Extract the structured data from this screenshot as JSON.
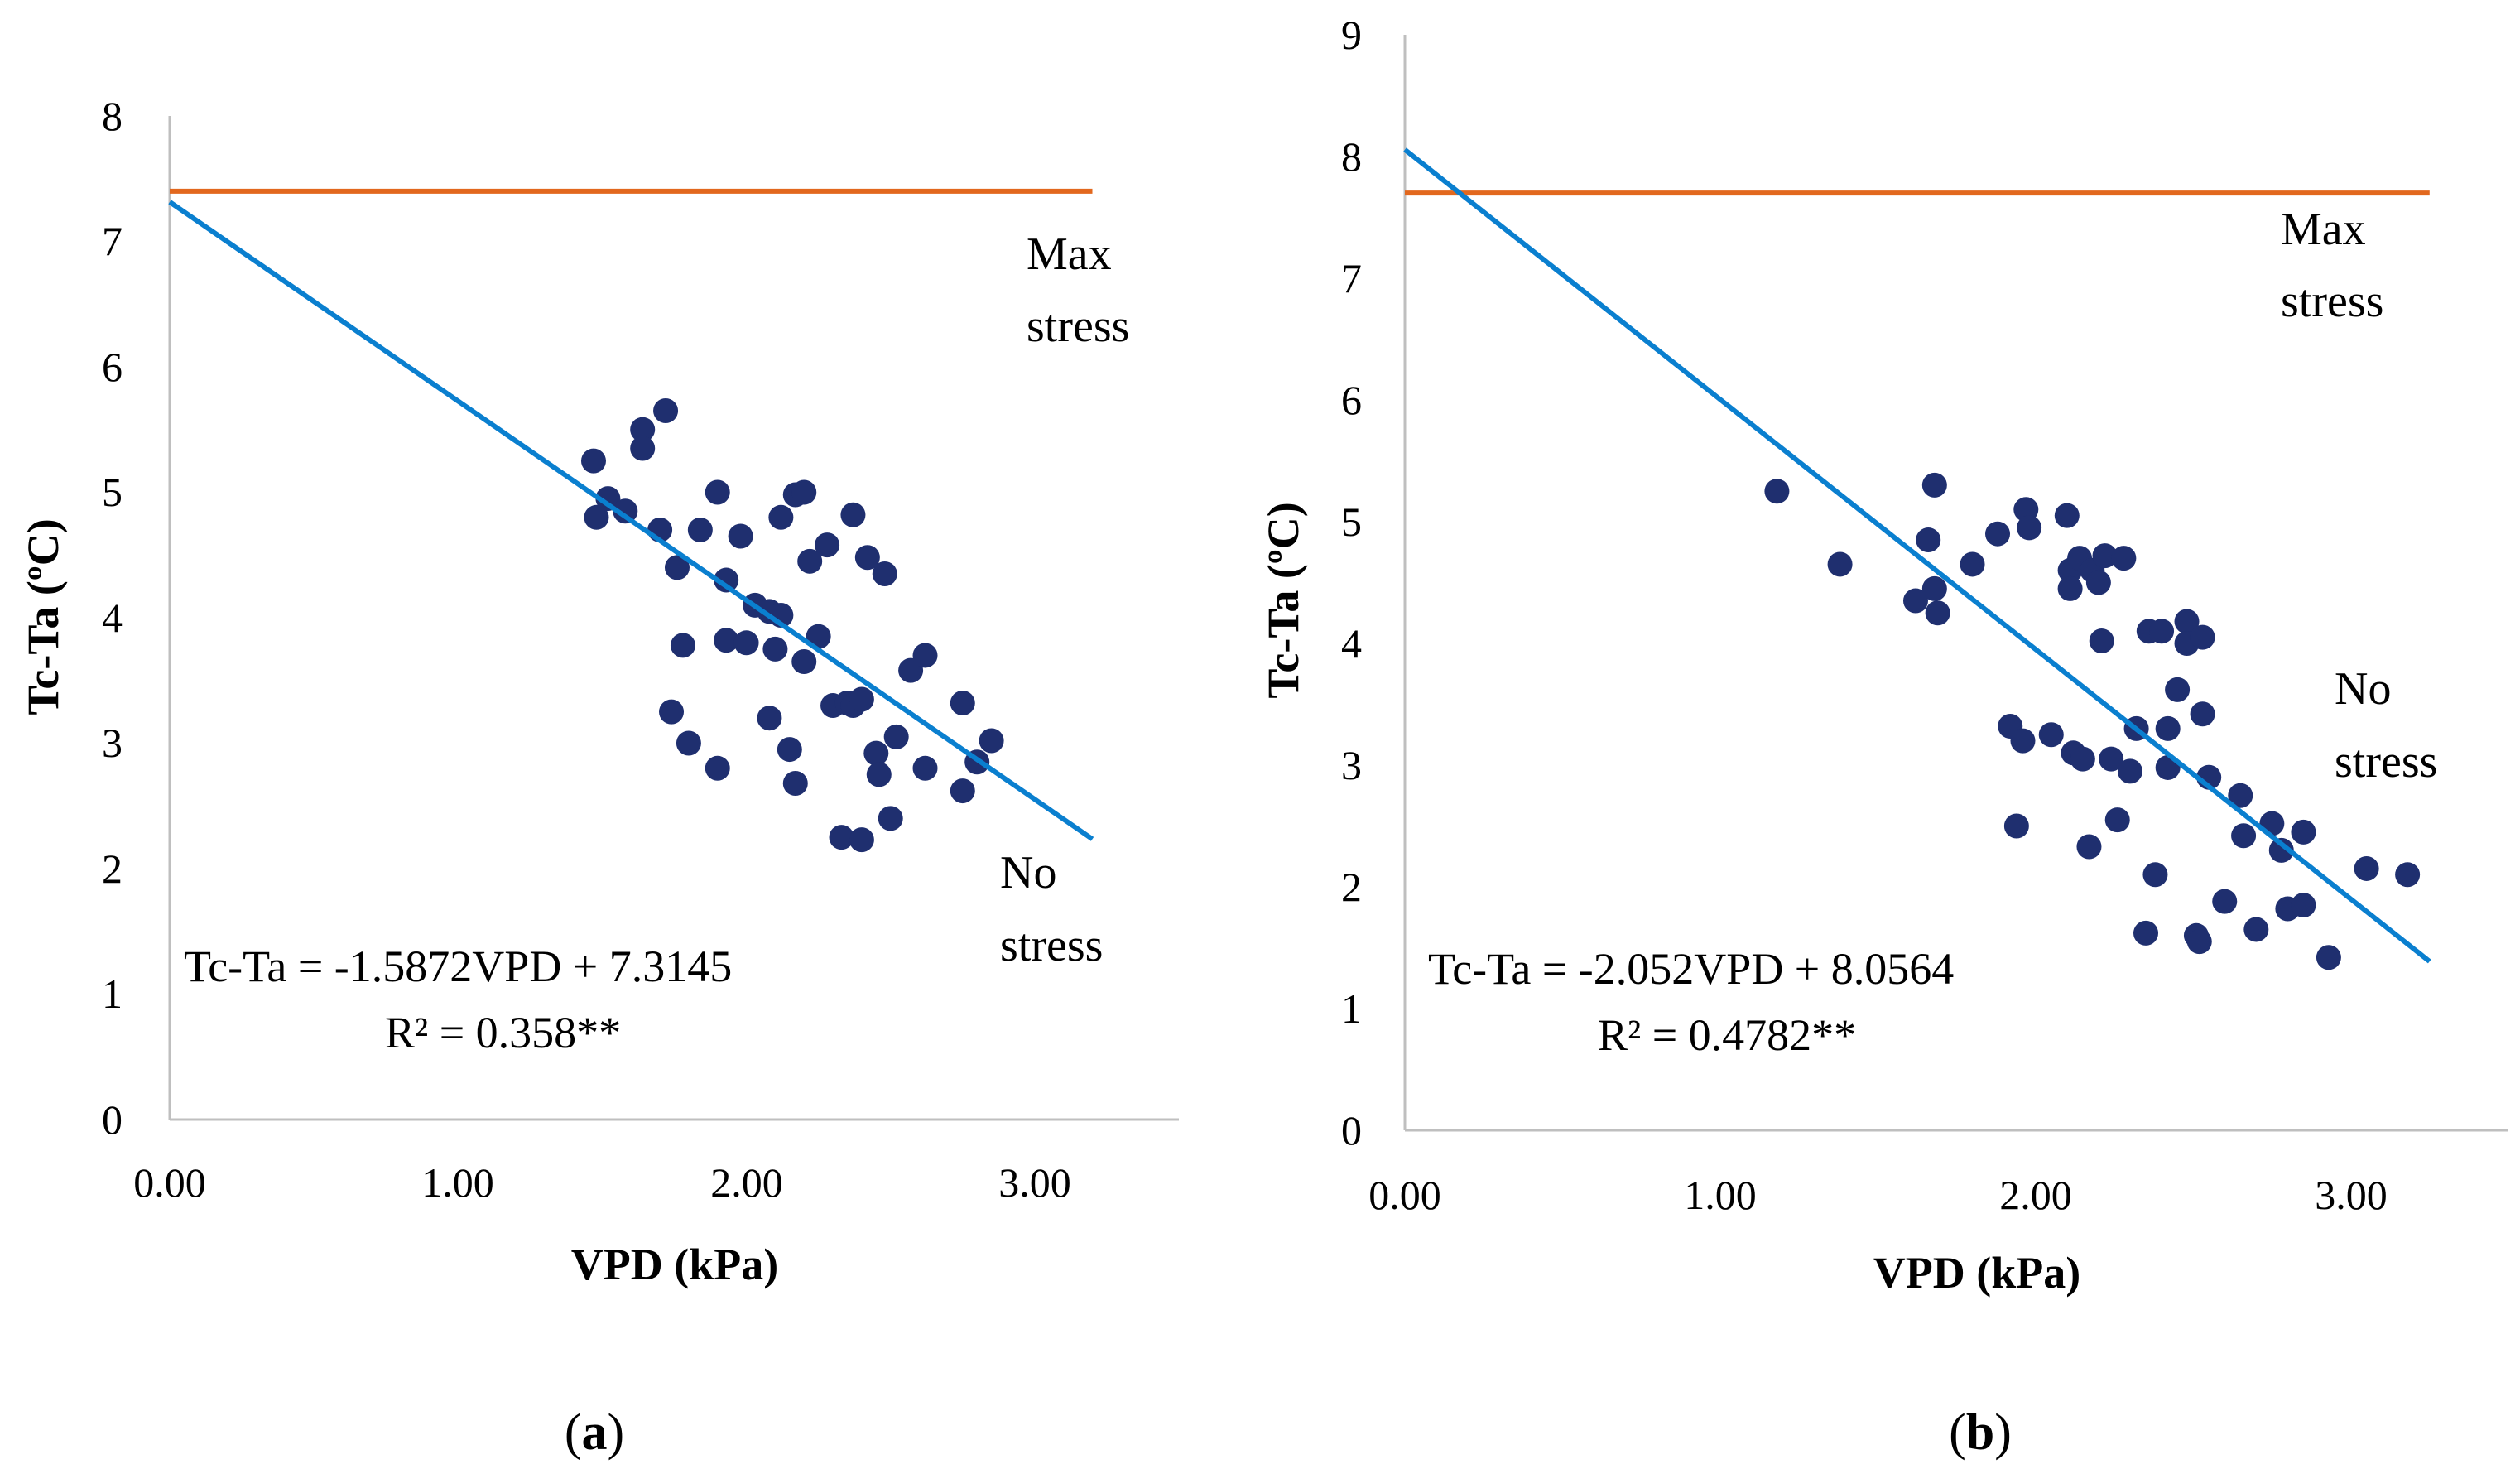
{
  "chart_data": [
    {
      "panel_label": "a",
      "type": "scatter",
      "title": "",
      "xlabel": "VPD (kPa)",
      "ylabel": "Tc-Ta (ºC)",
      "xlim": [
        0,
        3.5
      ],
      "ylim": [
        0,
        8
      ],
      "xticks": [
        "0.00",
        "1.00",
        "2.00",
        "3.00"
      ],
      "yticks": [
        "0",
        "1",
        "2",
        "3",
        "4",
        "5",
        "6",
        "7",
        "8"
      ],
      "colors": {
        "points": "#1f2f6f",
        "regression": "#0a7fcf",
        "max_stress": "#e2681e",
        "axis": "#bfbfbf"
      },
      "max_stress_line": {
        "y": 7.4,
        "x_range": [
          0,
          3.2
        ]
      },
      "regression": {
        "slope": -1.5872,
        "intercept": 7.3145,
        "x_range": [
          0,
          3.2
        ]
      },
      "annotations": {
        "max_stress": [
          "Max",
          "stress"
        ],
        "no_stress": [
          "No",
          "stress"
        ],
        "equation": "Tc-Ta = -1.5872VPD + 7.3145",
        "r2": "R² = 0.358**"
      },
      "points": [
        [
          1.47,
          5.25
        ],
        [
          1.48,
          4.8
        ],
        [
          1.52,
          4.95
        ],
        [
          1.58,
          4.85
        ],
        [
          1.64,
          5.5
        ],
        [
          1.64,
          5.35
        ],
        [
          1.7,
          4.7
        ],
        [
          1.72,
          5.65
        ],
        [
          1.74,
          3.25
        ],
        [
          1.76,
          4.4
        ],
        [
          1.78,
          3.78
        ],
        [
          1.8,
          3.0
        ],
        [
          1.84,
          4.7
        ],
        [
          1.9,
          2.8
        ],
        [
          1.9,
          5.0
        ],
        [
          1.93,
          4.3
        ],
        [
          1.93,
          3.82
        ],
        [
          1.98,
          4.65
        ],
        [
          2.0,
          3.8
        ],
        [
          2.03,
          4.1
        ],
        [
          2.08,
          4.05
        ],
        [
          2.08,
          3.2
        ],
        [
          2.1,
          3.75
        ],
        [
          2.12,
          4.8
        ],
        [
          2.12,
          4.02
        ],
        [
          2.15,
          2.95
        ],
        [
          2.17,
          4.98
        ],
        [
          2.17,
          2.68
        ],
        [
          2.2,
          3.65
        ],
        [
          2.2,
          5.0
        ],
        [
          2.22,
          4.45
        ],
        [
          2.25,
          3.85
        ],
        [
          2.28,
          4.58
        ],
        [
          2.3,
          3.3
        ],
        [
          2.33,
          2.25
        ],
        [
          2.35,
          3.32
        ],
        [
          2.37,
          4.82
        ],
        [
          2.37,
          3.3
        ],
        [
          2.4,
          2.23
        ],
        [
          2.4,
          3.35
        ],
        [
          2.42,
          4.48
        ],
        [
          2.45,
          2.92
        ],
        [
          2.46,
          2.75
        ],
        [
          2.48,
          4.35
        ],
        [
          2.5,
          2.4
        ],
        [
          2.52,
          3.05
        ],
        [
          2.57,
          3.58
        ],
        [
          2.62,
          3.7
        ],
        [
          2.62,
          2.8
        ],
        [
          2.75,
          3.32
        ],
        [
          2.75,
          2.62
        ],
        [
          2.8,
          2.85
        ],
        [
          2.85,
          3.02
        ]
      ]
    },
    {
      "panel_label": "b",
      "type": "scatter",
      "title": "",
      "xlabel": "VPD (kPa)",
      "ylabel": "Tc-Ta (ºC)",
      "xlim": [
        0,
        3.5
      ],
      "ylim": [
        0,
        9
      ],
      "xticks": [
        "0.00",
        "1.00",
        "2.00",
        "3.00"
      ],
      "yticks": [
        "0",
        "1",
        "2",
        "3",
        "4",
        "5",
        "6",
        "7",
        "8",
        "9"
      ],
      "colors": {
        "points": "#1f2f6f",
        "regression": "#0a7fcf",
        "max_stress": "#e2681e",
        "axis": "#bfbfbf"
      },
      "max_stress_line": {
        "y": 7.7,
        "x_range": [
          0,
          3.25
        ]
      },
      "regression": {
        "slope": -2.052,
        "intercept": 8.0564,
        "x_range": [
          0,
          3.25
        ]
      },
      "annotations": {
        "max_stress": [
          "Max",
          "stress"
        ],
        "no_stress": [
          "No",
          "stress"
        ],
        "equation": "Tc-Ta = -2.052VPD + 8.0564",
        "r2": "R² = 0.4782**"
      },
      "points": [
        [
          1.18,
          5.25
        ],
        [
          1.38,
          4.65
        ],
        [
          1.62,
          4.35
        ],
        [
          1.66,
          4.85
        ],
        [
          1.68,
          5.3
        ],
        [
          1.68,
          4.45
        ],
        [
          1.69,
          4.25
        ],
        [
          1.8,
          4.65
        ],
        [
          1.88,
          4.9
        ],
        [
          1.92,
          3.32
        ],
        [
          1.94,
          2.5
        ],
        [
          1.96,
          3.2
        ],
        [
          1.97,
          5.1
        ],
        [
          1.98,
          4.95
        ],
        [
          2.05,
          3.25
        ],
        [
          2.1,
          5.05
        ],
        [
          2.11,
          4.6
        ],
        [
          2.11,
          4.45
        ],
        [
          2.12,
          3.1
        ],
        [
          2.14,
          4.7
        ],
        [
          2.15,
          3.05
        ],
        [
          2.17,
          2.33
        ],
        [
          2.18,
          4.6
        ],
        [
          2.2,
          4.5
        ],
        [
          2.21,
          4.02
        ],
        [
          2.22,
          4.72
        ],
        [
          2.24,
          3.05
        ],
        [
          2.26,
          2.55
        ],
        [
          2.28,
          4.7
        ],
        [
          2.3,
          2.95
        ],
        [
          2.32,
          3.3
        ],
        [
          2.35,
          1.62
        ],
        [
          2.36,
          4.1
        ],
        [
          2.38,
          2.1
        ],
        [
          2.4,
          4.1
        ],
        [
          2.42,
          3.3
        ],
        [
          2.42,
          2.98
        ],
        [
          2.45,
          3.62
        ],
        [
          2.48,
          4.18
        ],
        [
          2.48,
          4.0
        ],
        [
          2.51,
          1.6
        ],
        [
          2.52,
          1.55
        ],
        [
          2.53,
          4.05
        ],
        [
          2.53,
          3.42
        ],
        [
          2.55,
          2.9
        ],
        [
          2.6,
          1.88
        ],
        [
          2.65,
          2.75
        ],
        [
          2.66,
          2.42
        ],
        [
          2.7,
          1.65
        ],
        [
          2.75,
          2.52
        ],
        [
          2.78,
          2.3
        ],
        [
          2.8,
          1.82
        ],
        [
          2.85,
          2.45
        ],
        [
          2.85,
          1.85
        ],
        [
          2.93,
          1.42
        ],
        [
          3.05,
          2.15
        ],
        [
          3.18,
          2.1
        ]
      ]
    }
  ]
}
